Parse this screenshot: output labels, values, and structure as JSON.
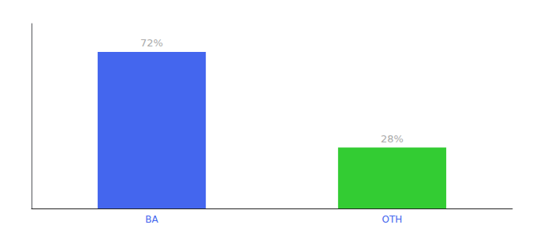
{
  "chart_data": {
    "type": "bar",
    "categories": [
      "BA",
      "OTH"
    ],
    "values": [
      72,
      28
    ],
    "value_labels": [
      "72%",
      "28%"
    ],
    "data_labels": true,
    "colors": [
      "#4466ee",
      "#33cc33"
    ],
    "ylim": [
      0,
      85
    ],
    "tick_labels": "x",
    "grid": false
  }
}
